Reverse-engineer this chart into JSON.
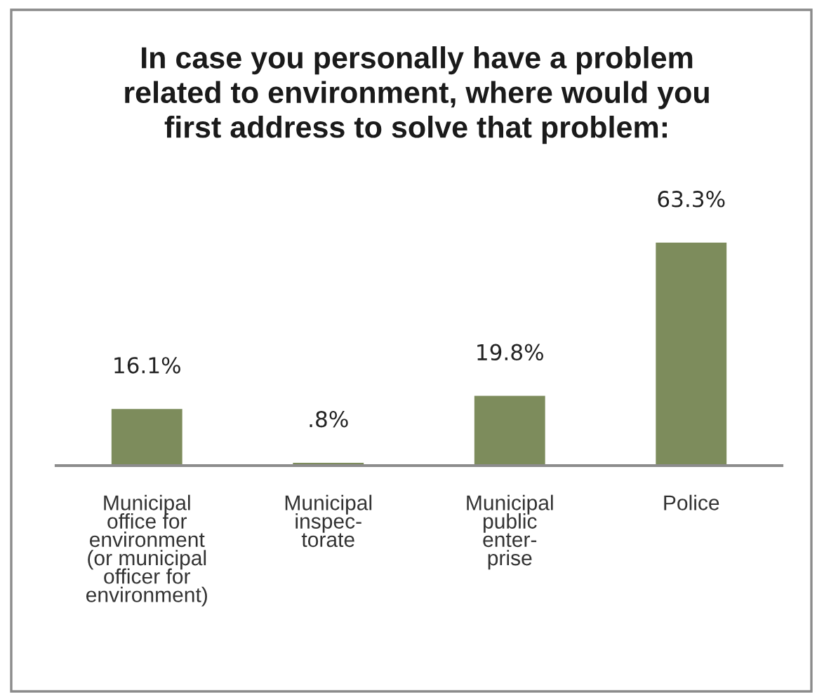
{
  "chart_data": {
    "type": "bar",
    "title": "In case you personally have a problem\nrelated to environment, where would you\nfirst address to solve that problem:",
    "categories": [
      "Municipal\noffice for\nenvironment\n(or municipal\nofficer for\nenvironment)",
      "Municipal\ninspec-\ntorate",
      "Municipal\npublic\nenter-\nprise",
      "Police"
    ],
    "values": [
      16.1,
      0.8,
      19.8,
      63.3
    ],
    "value_labels": [
      "16.1%",
      ".8%",
      "19.8%",
      "63.3%"
    ],
    "color": "#7d8c5c",
    "grid": false,
    "legend": false
  }
}
